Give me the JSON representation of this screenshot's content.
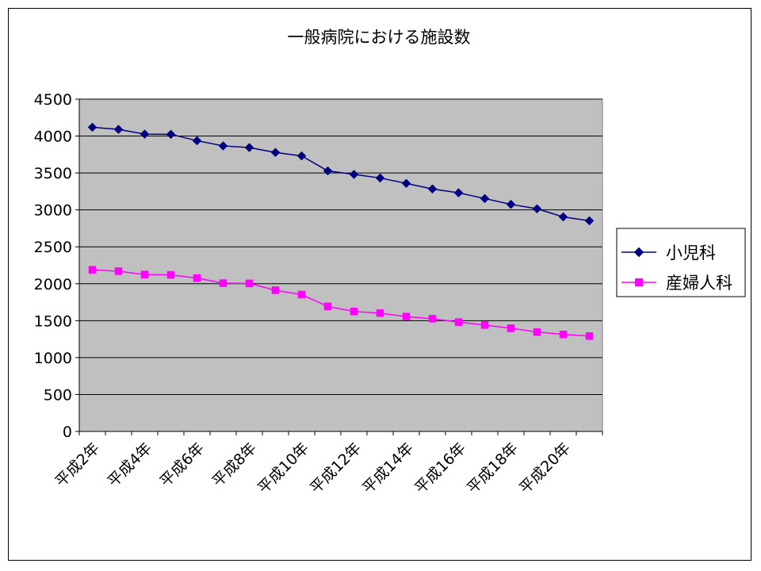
{
  "chart_data": {
    "type": "line",
    "title": "一般病院における施設数",
    "xlabel": "",
    "ylabel": "",
    "ylim": [
      0,
      4500
    ],
    "yticks": [
      0,
      500,
      1000,
      1500,
      2000,
      2500,
      3000,
      3500,
      4000,
      4500
    ],
    "grid": true,
    "legend_position": "right",
    "categories": [
      "平成2年",
      "平成3年",
      "平成4年",
      "平成5年",
      "平成6年",
      "平成7年",
      "平成8年",
      "平成9年",
      "平成10年",
      "平成11年",
      "平成12年",
      "平成13年",
      "平成14年",
      "平成15年",
      "平成16年",
      "平成17年",
      "平成18年",
      "平成19年",
      "平成20年",
      "平成21年"
    ],
    "tick_labels": [
      "平成2年",
      "平成4年",
      "平成6年",
      "平成8年",
      "平成10年",
      "平成12年",
      "平成14年",
      "平成16年",
      "平成18年",
      "平成20年"
    ],
    "plot_background": "#c0c0c0",
    "series": [
      {
        "name": "小児科",
        "color": "#000080",
        "marker": "diamond",
        "values": [
          4119,
          4090,
          4026,
          4024,
          3937,
          3867,
          3844,
          3778,
          3731,
          3528,
          3481,
          3432,
          3359,
          3284,
          3231,
          3154,
          3075,
          3015,
          2905,
          2853
        ]
      },
      {
        "name": "産婦人科",
        "color": "#ff00ff",
        "marker": "square",
        "values": [
          2189,
          2170,
          2125,
          2120,
          2077,
          2008,
          2004,
          1912,
          1853,
          1693,
          1624,
          1602,
          1555,
          1526,
          1481,
          1440,
          1397,
          1346,
          1313,
          1291
        ]
      }
    ]
  }
}
